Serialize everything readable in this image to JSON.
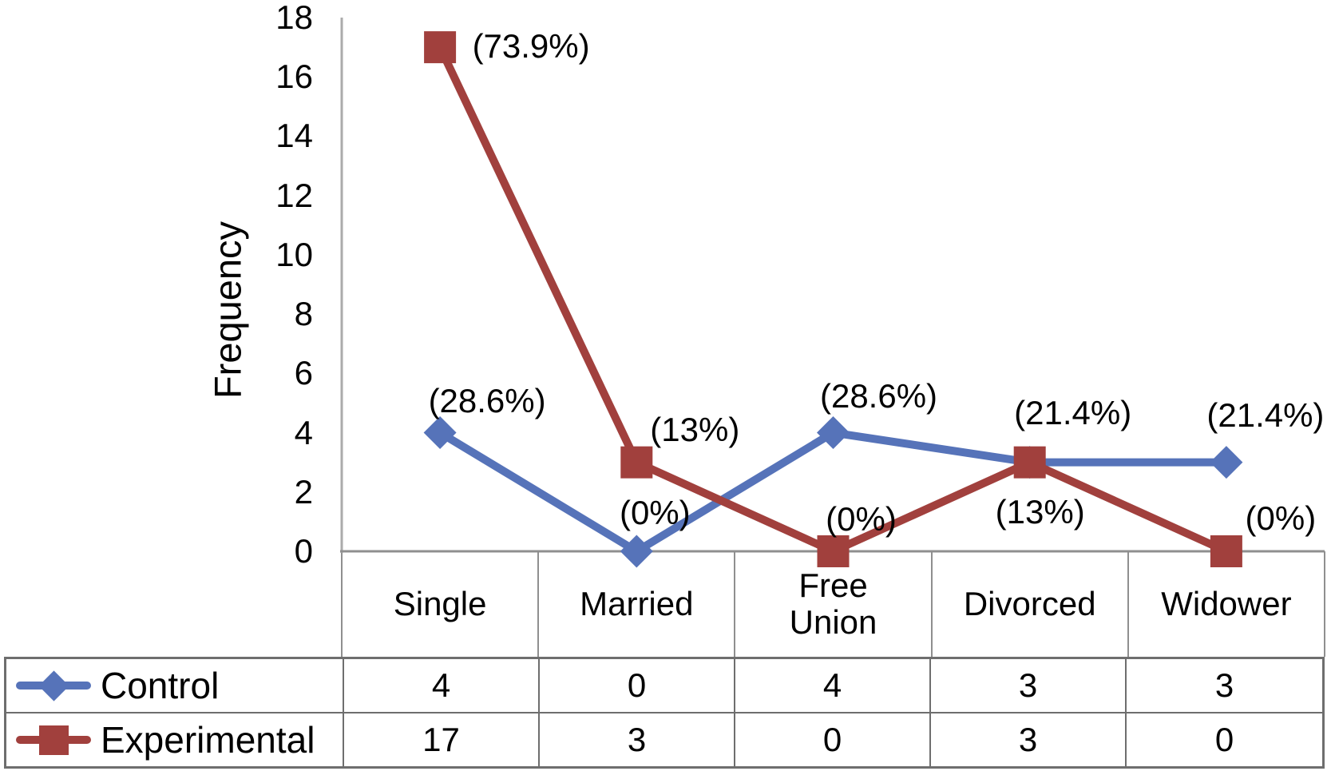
{
  "chart_data": {
    "type": "line",
    "title": "",
    "xlabel": "",
    "ylabel": "Frequency",
    "ylim": [
      0,
      18
    ],
    "yticks": [
      0,
      2,
      4,
      6,
      8,
      10,
      12,
      14,
      16,
      18
    ],
    "categories": [
      "Single",
      "Married",
      "Free Union",
      "Divorced",
      "Widower"
    ],
    "series": [
      {
        "name": "Control",
        "color": "#5673B9",
        "marker": "diamond",
        "values": [
          4,
          0,
          4,
          3,
          3
        ],
        "point_labels": [
          "(28.6%)",
          "(0%)",
          "(28.6%)",
          "(21.4%)",
          "(21.4%)"
        ]
      },
      {
        "name": "Experimental",
        "color": "#A1403D",
        "marker": "square",
        "values": [
          17,
          3,
          0,
          3,
          0
        ],
        "point_labels": [
          "(73.9%)",
          "(13%)",
          "(0%)",
          "(13%)",
          "(0%)"
        ]
      }
    ],
    "grid": false,
    "legend_position": "table-left",
    "axis_color": "#a0a0a0",
    "table_border_color": "#6e6e6e"
  }
}
